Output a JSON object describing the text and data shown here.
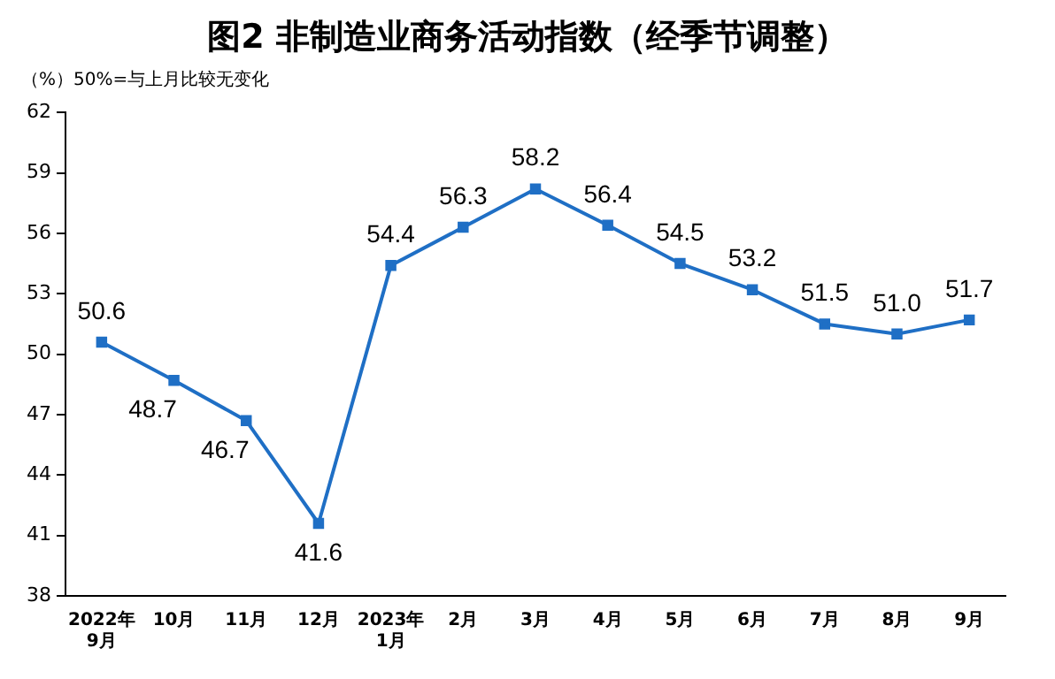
{
  "chart_data": {
    "type": "line",
    "title": "图2  非制造业商务活动指数（经季节调整）",
    "ylabel": "（%）50%=与上月比较无变化",
    "categories": [
      "2022年\n9月",
      "10月",
      "11月",
      "12月",
      "2023年\n1月",
      "2月",
      "3月",
      "4月",
      "5月",
      "6月",
      "7月",
      "8月",
      "9月"
    ],
    "series": [
      {
        "color": "#1f6fc5",
        "values": [
          50.6,
          48.7,
          46.7,
          41.6,
          54.4,
          56.3,
          58.2,
          56.4,
          54.5,
          53.2,
          51.5,
          51.0,
          51.7
        ],
        "value_labels": [
          "50.6",
          "48.7",
          "46.7",
          "41.6",
          "54.4",
          "56.3",
          "58.2",
          "56.4",
          "54.5",
          "53.2",
          "51.5",
          "51.0",
          "51.7"
        ]
      }
    ],
    "ylim": [
      38,
      62
    ],
    "yticks": [
      38,
      41,
      44,
      47,
      50,
      53,
      56,
      59,
      62
    ],
    "grid": false,
    "legend": false,
    "marker": "square",
    "line_style": "solid"
  }
}
